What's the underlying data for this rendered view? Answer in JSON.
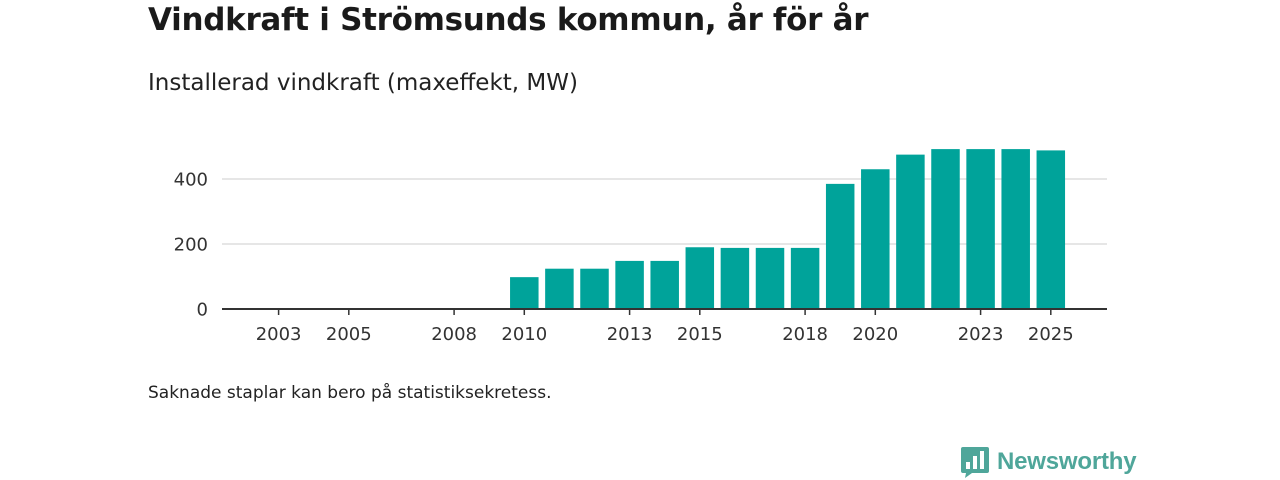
{
  "colors": {
    "bar": "#00a39a",
    "grid": "#dddddd",
    "axis": "#333333",
    "brand": "#4fa69a"
  },
  "footnote": "Saknade staplar kan bero på statistiksekretess.",
  "brand": {
    "name": "Newsworthy",
    "icon": "bar-chart-speech-bubble-icon"
  },
  "chart_data": {
    "type": "bar",
    "title": "Vindkraft i Strömsunds kommun, år för år",
    "subtitle": "Installerad vindkraft (maxeffekt, MW)",
    "xlabel": "",
    "ylabel": "",
    "categories": [
      "2002",
      "2003",
      "2004",
      "2005",
      "2006",
      "2007",
      "2008",
      "2009",
      "2010",
      "2011",
      "2012",
      "2013",
      "2014",
      "2015",
      "2016",
      "2017",
      "2018",
      "2019",
      "2020",
      "2021",
      "2022",
      "2023",
      "2024",
      "2025"
    ],
    "values": [
      0,
      0,
      0,
      0,
      0,
      0,
      2,
      2,
      98,
      124,
      124,
      148,
      148,
      190,
      188,
      188,
      188,
      385,
      430,
      475,
      492,
      492,
      492,
      488
    ],
    "x_tick_labels": [
      "2003",
      "2005",
      "2008",
      "2010",
      "2013",
      "2015",
      "2018",
      "2020",
      "2023",
      "2025"
    ],
    "y_ticks": [
      0,
      200,
      400
    ],
    "y_tick_labels": [
      "0",
      "200",
      "400"
    ],
    "ylim": [
      0,
      550
    ],
    "grid": true
  }
}
